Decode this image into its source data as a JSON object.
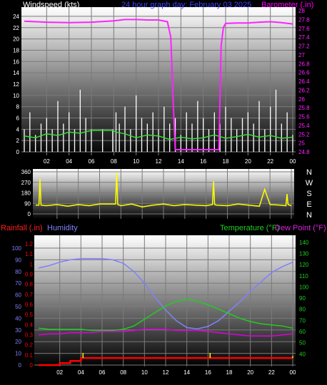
{
  "header": {
    "wind_label": "Windspeed (kts)",
    "title": "24 hour graph day:  February 03 2025",
    "baro_label": "Barometer (.in)"
  },
  "bottom_header": {
    "rain_label": "Rainfall (.in)",
    "humidity_label": "Humidity",
    "temp_label": "Temperature (°F)",
    "dew_label": "Dew Point (°F)"
  },
  "compass": [
    "N",
    "W",
    "S",
    "E",
    "N"
  ],
  "colors": {
    "wind": "#ffffff",
    "wind_avg": "#33dd33",
    "barometer": "#ff22ff",
    "direction": "#ffff00",
    "rain": "#ff0000",
    "rain_rate": "#ffff00",
    "humidity": "#8080ff",
    "temperature": "#22cc22",
    "dewpoint": "#dd00dd",
    "label_left": "#ffffff",
    "label_title": "#4040ff",
    "label_baro": "#ff00ff"
  },
  "chart_data": [
    {
      "type": "line",
      "x_ticks": [
        "02",
        "04",
        "06",
        "08",
        "10",
        "12",
        "14",
        "16",
        "18",
        "20",
        "22",
        "00"
      ],
      "x_range": [
        0,
        24
      ],
      "y_left": {
        "range": [
          0,
          25
        ],
        "ticks": [
          "0",
          "2",
          "4",
          "6",
          "8",
          "10",
          "12",
          "14",
          "16",
          "18",
          "20",
          "22",
          "24"
        ]
      },
      "y_right": {
        "range": [
          24.8,
          28.0
        ],
        "ticks": [
          "24.8",
          "25",
          "25.2",
          "25.4",
          "25.6",
          "25.8",
          "26",
          "26.2",
          "26.4",
          "26.6",
          "26.8",
          "27",
          "27.2",
          "27.4",
          "27.6",
          "27.8",
          "28"
        ]
      },
      "series": [
        {
          "key": "barometer",
          "x": [
            0,
            2,
            4,
            6,
            8,
            9,
            10,
            11,
            12,
            12.8,
            13.1,
            13.3,
            13.5,
            13.7,
            14,
            15,
            16,
            17,
            17.4,
            17.6,
            17.8,
            18,
            19,
            20,
            21,
            22,
            23,
            24
          ],
          "y": [
            27.76,
            27.74,
            27.73,
            27.74,
            27.77,
            27.8,
            27.8,
            27.79,
            27.79,
            27.75,
            27.4,
            26.0,
            24.85,
            24.85,
            24.85,
            24.85,
            24.85,
            24.85,
            24.85,
            27.2,
            27.62,
            27.71,
            27.72,
            27.72,
            27.74,
            27.75,
            27.73,
            27.7
          ]
        },
        {
          "key": "wind_avg",
          "x": [
            0,
            1,
            2,
            3,
            4,
            5,
            5.6,
            6,
            7,
            7.9,
            8.2,
            9,
            10,
            11,
            12,
            13,
            14,
            15,
            16,
            17,
            18,
            19,
            20,
            21,
            22,
            23,
            24
          ],
          "y": [
            2.8,
            2.5,
            3.2,
            2.9,
            3.5,
            3.3,
            3.6,
            3.8,
            3.8,
            3.8,
            3.5,
            3.2,
            2.5,
            3,
            2.8,
            2.2,
            2.6,
            2.3,
            2.5,
            3,
            2.4,
            2.7,
            3.1,
            2.6,
            2.9,
            2.4,
            2.6
          ]
        },
        {
          "key": "wind_gust",
          "x": [
            0,
            0.5,
            1,
            1.5,
            2,
            2.5,
            3,
            3.5,
            4,
            4.5,
            5,
            5.5,
            6,
            7,
            7.9,
            8.2,
            8.5,
            9,
            9.5,
            10,
            10.5,
            11,
            11.5,
            12,
            12.5,
            13,
            13.5,
            14,
            14.5,
            15,
            15.5,
            16,
            16.5,
            17,
            17.5,
            18,
            18.5,
            19,
            19.5,
            20,
            20.5,
            21,
            21.5,
            22,
            22.5,
            23,
            23.5,
            24
          ],
          "y": [
            4,
            7,
            3,
            5,
            6,
            4,
            9,
            5,
            7,
            4,
            11,
            6,
            4,
            4,
            4,
            7,
            5,
            8,
            4,
            10,
            6,
            5,
            7,
            4,
            8,
            5,
            6,
            3,
            7,
            5,
            9,
            6,
            4,
            7,
            5,
            8,
            6,
            4,
            6,
            7,
            5,
            9,
            4,
            8,
            11,
            5,
            7,
            3
          ]
        }
      ]
    },
    {
      "type": "line",
      "y_ticks": [
        "0",
        "90",
        "180",
        "270",
        "360"
      ],
      "y_range": [
        0,
        360
      ],
      "series": [
        {
          "key": "direction",
          "x": [
            0,
            0.3,
            0.4,
            0.5,
            1,
            2,
            3,
            4,
            5,
            6,
            7,
            7.5,
            7.6,
            7.7,
            8,
            9,
            10,
            11,
            12,
            13,
            14,
            15,
            16,
            16.6,
            16.7,
            16.8,
            17,
            18,
            19,
            20,
            21,
            21.5,
            22,
            23,
            23.5,
            23.6,
            23.7,
            24
          ],
          "y": [
            75,
            75,
            300,
            75,
            70,
            80,
            65,
            80,
            70,
            85,
            85,
            85,
            350,
            80,
            70,
            85,
            60,
            75,
            85,
            70,
            80,
            75,
            70,
            80,
            280,
            80,
            75,
            70,
            85,
            75,
            65,
            210,
            80,
            75,
            70,
            170,
            80,
            70
          ]
        }
      ]
    },
    {
      "type": "line",
      "x_ticks": [
        "02",
        "04",
        "06",
        "08",
        "10",
        "12",
        "14",
        "16",
        "18",
        "20",
        "22",
        "00"
      ],
      "y_left_humidity": {
        "range": [
          0,
          100
        ],
        "ticks": [
          "0",
          "10",
          "20",
          "30",
          "40",
          "50",
          "60",
          "70",
          "80",
          "90",
          "100"
        ]
      },
      "y_left_rain": {
        "range": [
          0,
          1.2
        ],
        "ticks": [
          "0",
          "0.1",
          "0.2",
          "0.3",
          "0.4",
          "0.5",
          "0.6",
          "0.7",
          "0.8",
          "0.9",
          "1",
          "1.1",
          "1.2"
        ]
      },
      "y_right": {
        "range": [
          30,
          145
        ],
        "ticks": [
          "40",
          "50",
          "60",
          "70",
          "80",
          "90",
          "100",
          "110",
          "120",
          "130",
          "140"
        ]
      },
      "series": [
        {
          "key": "humidity",
          "x": [
            0,
            1,
            2,
            3,
            4,
            5,
            6,
            7,
            8,
            9,
            10,
            11,
            12,
            13,
            14,
            15,
            16,
            17,
            18,
            19,
            20,
            21,
            22,
            23,
            24
          ],
          "y": [
            83,
            85,
            88,
            90,
            91,
            91,
            91,
            90,
            87,
            80,
            70,
            58,
            47,
            38,
            32,
            31,
            33,
            38,
            46,
            54,
            63,
            71,
            79,
            84,
            88
          ]
        },
        {
          "key": "temperature",
          "x": [
            0,
            1,
            2,
            3,
            4,
            5,
            6,
            7,
            8,
            9,
            10,
            11,
            12,
            13,
            14,
            15,
            16,
            17,
            18,
            19,
            20,
            21,
            22,
            23,
            24
          ],
          "y": [
            63,
            62,
            62,
            62,
            62,
            61,
            61,
            61,
            62,
            65,
            71,
            77,
            83,
            87,
            89,
            87,
            84,
            80,
            76,
            72,
            69,
            67,
            66,
            65,
            63
          ]
        },
        {
          "key": "dewpoint",
          "x": [
            0,
            1,
            2,
            3,
            4,
            5,
            6,
            7,
            8,
            9,
            10,
            11,
            12,
            13,
            14,
            15,
            16,
            17,
            18,
            19,
            20,
            21,
            22,
            23,
            24
          ],
          "y": [
            57,
            58,
            58,
            59,
            59,
            59,
            60,
            60,
            60,
            61,
            62,
            62,
            62,
            61,
            61,
            61,
            60,
            59,
            58,
            57,
            56,
            56,
            56,
            57,
            58
          ]
        },
        {
          "key": "rain",
          "x": [
            0,
            1.5,
            2,
            2.5,
            3,
            3.5,
            4,
            24
          ],
          "y": [
            0,
            0,
            0.02,
            0.02,
            0.04,
            0.04,
            0.07,
            0.07
          ]
        },
        {
          "key": "rain_rate_spikes",
          "x": [
            4.2,
            16.2,
            24
          ],
          "y": [
            0.12,
            0.12,
            0.09
          ]
        }
      ]
    }
  ]
}
